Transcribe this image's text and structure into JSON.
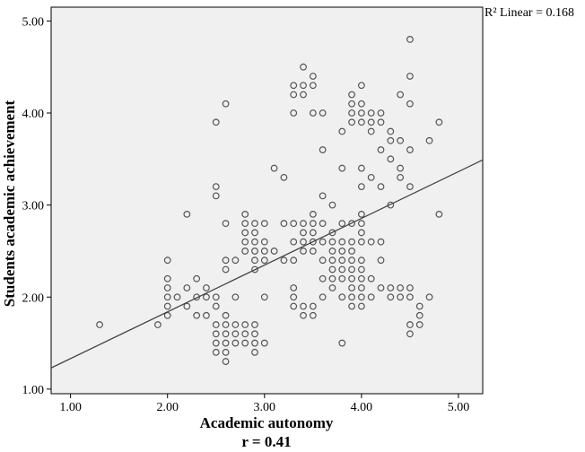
{
  "chart_data": {
    "type": "scatter",
    "title": "",
    "xlabel": "Academic autonomy",
    "ylabel": "Students academic achievement",
    "caption": "r = 0.41",
    "annotation": "R² Linear = 0.168",
    "xlim": [
      0.8,
      5.25
    ],
    "ylim": [
      0.95,
      5.15
    ],
    "xticks": [
      "1.00",
      "2.00",
      "3.00",
      "4.00",
      "5.00"
    ],
    "yticks": [
      "1.00",
      "2.00",
      "3.00",
      "4.00",
      "5.00"
    ],
    "grid": false,
    "legend": "none",
    "fit_line": {
      "x": [
        0.8,
        5.25
      ],
      "y": [
        1.23,
        3.49
      ]
    },
    "colors": {
      "background": "#f0f0f0",
      "marker": "#555555",
      "line": "#444444"
    },
    "points": [
      [
        1.3,
        1.7
      ],
      [
        1.9,
        1.7
      ],
      [
        2.0,
        1.8
      ],
      [
        2.0,
        1.9
      ],
      [
        2.0,
        2.0
      ],
      [
        2.0,
        2.1
      ],
      [
        2.0,
        2.2
      ],
      [
        2.0,
        2.4
      ],
      [
        2.1,
        2.0
      ],
      [
        2.2,
        1.9
      ],
      [
        2.2,
        2.1
      ],
      [
        2.2,
        2.9
      ],
      [
        2.3,
        1.8
      ],
      [
        2.3,
        2.0
      ],
      [
        2.3,
        2.2
      ],
      [
        2.4,
        1.8
      ],
      [
        2.4,
        2.0
      ],
      [
        2.4,
        2.1
      ],
      [
        2.5,
        1.9
      ],
      [
        2.5,
        2.0
      ],
      [
        2.5,
        3.9
      ],
      [
        2.5,
        3.1
      ],
      [
        2.5,
        3.2
      ],
      [
        2.5,
        1.4
      ],
      [
        2.5,
        1.5
      ],
      [
        2.5,
        1.6
      ],
      [
        2.5,
        1.7
      ],
      [
        2.6,
        1.3
      ],
      [
        2.6,
        1.4
      ],
      [
        2.6,
        1.5
      ],
      [
        2.6,
        1.6
      ],
      [
        2.6,
        1.7
      ],
      [
        2.6,
        1.8
      ],
      [
        2.6,
        2.3
      ],
      [
        2.6,
        2.4
      ],
      [
        2.6,
        2.8
      ],
      [
        2.6,
        4.1
      ],
      [
        2.7,
        1.5
      ],
      [
        2.7,
        1.6
      ],
      [
        2.7,
        1.7
      ],
      [
        2.7,
        2.0
      ],
      [
        2.7,
        2.4
      ],
      [
        2.8,
        1.5
      ],
      [
        2.8,
        1.6
      ],
      [
        2.8,
        1.7
      ],
      [
        2.8,
        2.5
      ],
      [
        2.8,
        2.6
      ],
      [
        2.8,
        2.7
      ],
      [
        2.8,
        2.8
      ],
      [
        2.8,
        2.9
      ],
      [
        2.9,
        1.4
      ],
      [
        2.9,
        1.5
      ],
      [
        2.9,
        1.6
      ],
      [
        2.9,
        1.7
      ],
      [
        2.9,
        2.3
      ],
      [
        2.9,
        2.4
      ],
      [
        2.9,
        2.5
      ],
      [
        2.9,
        2.6
      ],
      [
        2.9,
        2.7
      ],
      [
        2.9,
        2.8
      ],
      [
        3.0,
        1.5
      ],
      [
        3.0,
        2.0
      ],
      [
        3.0,
        2.4
      ],
      [
        3.0,
        2.5
      ],
      [
        3.0,
        2.6
      ],
      [
        3.0,
        2.8
      ],
      [
        3.1,
        2.5
      ],
      [
        3.1,
        3.4
      ],
      [
        3.2,
        2.4
      ],
      [
        3.2,
        2.8
      ],
      [
        3.2,
        3.3
      ],
      [
        3.3,
        1.9
      ],
      [
        3.3,
        2.0
      ],
      [
        3.3,
        2.1
      ],
      [
        3.3,
        2.4
      ],
      [
        3.3,
        2.6
      ],
      [
        3.3,
        2.8
      ],
      [
        3.3,
        4.0
      ],
      [
        3.3,
        4.2
      ],
      [
        3.3,
        4.3
      ],
      [
        3.4,
        1.8
      ],
      [
        3.4,
        1.9
      ],
      [
        3.4,
        2.5
      ],
      [
        3.4,
        2.6
      ],
      [
        3.4,
        2.7
      ],
      [
        3.4,
        2.8
      ],
      [
        3.4,
        4.2
      ],
      [
        3.4,
        4.3
      ],
      [
        3.4,
        4.5
      ],
      [
        3.5,
        1.8
      ],
      [
        3.5,
        1.9
      ],
      [
        3.5,
        2.5
      ],
      [
        3.5,
        2.6
      ],
      [
        3.5,
        2.7
      ],
      [
        3.5,
        2.8
      ],
      [
        3.5,
        2.9
      ],
      [
        3.5,
        4.0
      ],
      [
        3.5,
        4.3
      ],
      [
        3.5,
        4.4
      ],
      [
        3.6,
        2.0
      ],
      [
        3.6,
        2.2
      ],
      [
        3.6,
        2.4
      ],
      [
        3.6,
        2.6
      ],
      [
        3.6,
        2.8
      ],
      [
        3.6,
        3.1
      ],
      [
        3.6,
        3.6
      ],
      [
        3.6,
        4.0
      ],
      [
        3.7,
        2.1
      ],
      [
        3.7,
        2.2
      ],
      [
        3.7,
        2.3
      ],
      [
        3.7,
        2.4
      ],
      [
        3.7,
        2.5
      ],
      [
        3.7,
        2.6
      ],
      [
        3.7,
        2.7
      ],
      [
        3.7,
        3.0
      ],
      [
        3.8,
        1.5
      ],
      [
        3.8,
        2.0
      ],
      [
        3.8,
        2.2
      ],
      [
        3.8,
        2.3
      ],
      [
        3.8,
        2.4
      ],
      [
        3.8,
        2.5
      ],
      [
        3.8,
        2.6
      ],
      [
        3.8,
        2.8
      ],
      [
        3.8,
        3.4
      ],
      [
        3.8,
        3.8
      ],
      [
        3.9,
        1.9
      ],
      [
        3.9,
        2.0
      ],
      [
        3.9,
        2.1
      ],
      [
        3.9,
        2.2
      ],
      [
        3.9,
        2.3
      ],
      [
        3.9,
        2.4
      ],
      [
        3.9,
        2.5
      ],
      [
        3.9,
        2.6
      ],
      [
        3.9,
        2.8
      ],
      [
        3.9,
        3.9
      ],
      [
        3.9,
        4.0
      ],
      [
        3.9,
        4.1
      ],
      [
        3.9,
        4.2
      ],
      [
        4.0,
        1.9
      ],
      [
        4.0,
        2.0
      ],
      [
        4.0,
        2.1
      ],
      [
        4.0,
        2.2
      ],
      [
        4.0,
        2.3
      ],
      [
        4.0,
        2.4
      ],
      [
        4.0,
        2.6
      ],
      [
        4.0,
        2.7
      ],
      [
        4.0,
        2.8
      ],
      [
        4.0,
        2.9
      ],
      [
        4.0,
        3.2
      ],
      [
        4.0,
        3.4
      ],
      [
        4.0,
        3.9
      ],
      [
        4.0,
        4.0
      ],
      [
        4.0,
        4.1
      ],
      [
        4.0,
        4.3
      ],
      [
        4.1,
        2.0
      ],
      [
        4.1,
        2.2
      ],
      [
        4.1,
        2.6
      ],
      [
        4.1,
        3.3
      ],
      [
        4.1,
        3.8
      ],
      [
        4.1,
        3.9
      ],
      [
        4.1,
        4.0
      ],
      [
        4.2,
        2.1
      ],
      [
        4.2,
        2.4
      ],
      [
        4.2,
        2.6
      ],
      [
        4.2,
        3.2
      ],
      [
        4.2,
        3.6
      ],
      [
        4.2,
        3.9
      ],
      [
        4.2,
        4.0
      ],
      [
        4.3,
        2.0
      ],
      [
        4.3,
        2.1
      ],
      [
        4.3,
        3.0
      ],
      [
        4.3,
        3.5
      ],
      [
        4.3,
        3.7
      ],
      [
        4.3,
        3.8
      ],
      [
        4.4,
        2.0
      ],
      [
        4.4,
        2.1
      ],
      [
        4.4,
        3.3
      ],
      [
        4.4,
        3.4
      ],
      [
        4.4,
        3.7
      ],
      [
        4.4,
        4.2
      ],
      [
        4.5,
        1.6
      ],
      [
        4.5,
        1.7
      ],
      [
        4.5,
        2.0
      ],
      [
        4.5,
        2.1
      ],
      [
        4.5,
        3.2
      ],
      [
        4.5,
        3.6
      ],
      [
        4.5,
        4.1
      ],
      [
        4.5,
        4.4
      ],
      [
        4.5,
        4.8
      ],
      [
        4.6,
        1.7
      ],
      [
        4.6,
        1.8
      ],
      [
        4.6,
        1.9
      ],
      [
        4.7,
        2.0
      ],
      [
        4.7,
        3.7
      ],
      [
        4.8,
        2.9
      ],
      [
        4.8,
        3.9
      ]
    ]
  }
}
